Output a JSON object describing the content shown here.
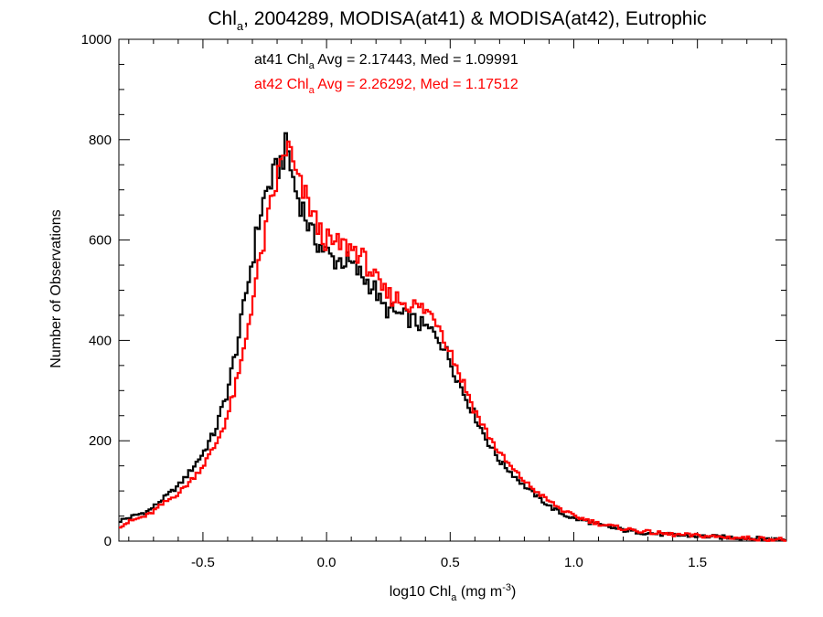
{
  "chart_data": {
    "type": "line",
    "step": true,
    "title": {
      "prefix": "Chl",
      "sub": "a",
      "suffix": ", 2004289, MODISA(at41) & MODISA(at42), Eutrophic"
    },
    "xlabel": {
      "prefix": "log10 Chl",
      "sub": "a",
      "mid": " (mg m",
      "sup": "-3",
      "suffix": ")"
    },
    "ylabel": "Number of Observations",
    "xlim": [
      -0.84,
      1.86
    ],
    "ylim": [
      0,
      1000
    ],
    "x_ticks": [
      {
        "value": -0.5,
        "label": "-0.5"
      },
      {
        "value": 0.0,
        "label": "0.0"
      },
      {
        "value": 0.5,
        "label": "0.5"
      },
      {
        "value": 1.0,
        "label": "1.0"
      },
      {
        "value": 1.5,
        "label": "1.5"
      }
    ],
    "y_ticks": [
      {
        "value": 0,
        "label": "0"
      },
      {
        "value": 200,
        "label": "200"
      },
      {
        "value": 400,
        "label": "400"
      },
      {
        "value": 600,
        "label": "600"
      },
      {
        "value": 800,
        "label": "800"
      },
      {
        "value": 1000,
        "label": "1000"
      }
    ],
    "bin_width": 0.01,
    "series": [
      {
        "name": "at41",
        "color": "#000000",
        "stats": {
          "prefix": "at41 Chl",
          "sub": "a",
          "suffix": " Avg = 2.17443, Med = 1.09991"
        },
        "points": [
          [
            -0.84,
            40
          ],
          [
            -0.78,
            50
          ],
          [
            -0.72,
            60
          ],
          [
            -0.66,
            85
          ],
          [
            -0.6,
            110
          ],
          [
            -0.55,
            140
          ],
          [
            -0.5,
            175
          ],
          [
            -0.45,
            220
          ],
          [
            -0.4,
            300
          ],
          [
            -0.35,
            420
          ],
          [
            -0.32,
            510
          ],
          [
            -0.3,
            560
          ],
          [
            -0.28,
            620
          ],
          [
            -0.26,
            670
          ],
          [
            -0.24,
            700
          ],
          [
            -0.22,
            720
          ],
          [
            -0.2,
            740
          ],
          [
            -0.18,
            760
          ],
          [
            -0.16,
            790
          ],
          [
            -0.14,
            730
          ],
          [
            -0.12,
            690
          ],
          [
            -0.1,
            670
          ],
          [
            -0.08,
            640
          ],
          [
            -0.06,
            610
          ],
          [
            -0.04,
            600
          ],
          [
            -0.02,
            585
          ],
          [
            0.0,
            575
          ],
          [
            0.03,
            560
          ],
          [
            0.06,
            560
          ],
          [
            0.09,
            555
          ],
          [
            0.12,
            540
          ],
          [
            0.15,
            525
          ],
          [
            0.18,
            510
          ],
          [
            0.2,
            500
          ],
          [
            0.22,
            470
          ],
          [
            0.25,
            460
          ],
          [
            0.3,
            450
          ],
          [
            0.35,
            440
          ],
          [
            0.4,
            425
          ],
          [
            0.45,
            410
          ],
          [
            0.5,
            360
          ],
          [
            0.55,
            300
          ],
          [
            0.6,
            250
          ],
          [
            0.65,
            200
          ],
          [
            0.7,
            160
          ],
          [
            0.75,
            135
          ],
          [
            0.8,
            110
          ],
          [
            0.85,
            90
          ],
          [
            0.9,
            70
          ],
          [
            0.95,
            55
          ],
          [
            1.0,
            45
          ],
          [
            1.05,
            40
          ],
          [
            1.1,
            32
          ],
          [
            1.2,
            22
          ],
          [
            1.3,
            16
          ],
          [
            1.4,
            12
          ],
          [
            1.5,
            10
          ],
          [
            1.6,
            8
          ],
          [
            1.7,
            6
          ],
          [
            1.8,
            4
          ],
          [
            1.86,
            3
          ]
        ]
      },
      {
        "name": "at42",
        "color": "#ff0000",
        "stats": {
          "prefix": "at42 Chl",
          "sub": "a",
          "suffix": " Avg = 2.26292, Med = 1.17512"
        },
        "points": [
          [
            -0.84,
            30
          ],
          [
            -0.78,
            42
          ],
          [
            -0.72,
            52
          ],
          [
            -0.66,
            75
          ],
          [
            -0.6,
            95
          ],
          [
            -0.55,
            120
          ],
          [
            -0.5,
            150
          ],
          [
            -0.45,
            190
          ],
          [
            -0.4,
            250
          ],
          [
            -0.35,
            340
          ],
          [
            -0.32,
            420
          ],
          [
            -0.3,
            480
          ],
          [
            -0.28,
            530
          ],
          [
            -0.26,
            580
          ],
          [
            -0.24,
            630
          ],
          [
            -0.22,
            680
          ],
          [
            -0.2,
            720
          ],
          [
            -0.18,
            760
          ],
          [
            -0.16,
            790
          ],
          [
            -0.14,
            760
          ],
          [
            -0.12,
            720
          ],
          [
            -0.1,
            700
          ],
          [
            -0.08,
            680
          ],
          [
            -0.06,
            660
          ],
          [
            -0.04,
            630
          ],
          [
            -0.02,
            610
          ],
          [
            0.0,
            600
          ],
          [
            0.03,
            590
          ],
          [
            0.06,
            590
          ],
          [
            0.09,
            585
          ],
          [
            0.12,
            580
          ],
          [
            0.15,
            560
          ],
          [
            0.18,
            540
          ],
          [
            0.2,
            520
          ],
          [
            0.22,
            500
          ],
          [
            0.25,
            490
          ],
          [
            0.3,
            480
          ],
          [
            0.35,
            470
          ],
          [
            0.4,
            460
          ],
          [
            0.45,
            440
          ],
          [
            0.5,
            380
          ],
          [
            0.55,
            320
          ],
          [
            0.6,
            260
          ],
          [
            0.65,
            215
          ],
          [
            0.7,
            175
          ],
          [
            0.75,
            145
          ],
          [
            0.8,
            120
          ],
          [
            0.85,
            98
          ],
          [
            0.9,
            80
          ],
          [
            0.95,
            63
          ],
          [
            1.0,
            50
          ],
          [
            1.05,
            43
          ],
          [
            1.1,
            35
          ],
          [
            1.2,
            25
          ],
          [
            1.3,
            18
          ],
          [
            1.4,
            13
          ],
          [
            1.5,
            11
          ],
          [
            1.6,
            8
          ],
          [
            1.7,
            6
          ],
          [
            1.8,
            4
          ],
          [
            1.86,
            3
          ]
        ]
      }
    ]
  }
}
